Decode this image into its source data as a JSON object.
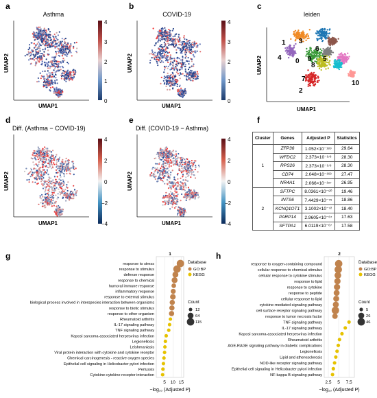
{
  "panels": {
    "a": {
      "letter": "a",
      "title": "Asthma",
      "xlabel": "UMAP1",
      "ylabel": "UMAP2",
      "colorbar": [
        "4",
        "3",
        "2",
        "1",
        "0"
      ]
    },
    "b": {
      "letter": "b",
      "title": "COVID-19",
      "xlabel": "UMAP1",
      "ylabel": "UMAP2",
      "colorbar": [
        "4",
        "3",
        "2",
        "1",
        "0"
      ]
    },
    "c": {
      "letter": "c",
      "title": "leiden",
      "xlabel": "UMAP1",
      "ylabel": "UMAP2",
      "clusters": [
        "1",
        "3",
        "6",
        "4",
        "0",
        "9",
        "5",
        "8",
        "7",
        "2",
        "10"
      ]
    },
    "d": {
      "letter": "d",
      "title": "Diff. (Asthma − COVID-19)",
      "xlabel": "UMAP1",
      "ylabel": "UMAP2",
      "colorbar": [
        "4",
        "2",
        "0",
        "−2",
        "−4"
      ]
    },
    "e": {
      "letter": "e",
      "title": "Diff. (COVID-19 − Asthma)",
      "xlabel": "UMAP1",
      "ylabel": "UMAP2",
      "colorbar": [
        "4",
        "2",
        "0",
        "−2",
        "−4"
      ]
    },
    "f": {
      "letter": "f"
    },
    "g": {
      "letter": "g"
    },
    "h": {
      "letter": "h"
    }
  },
  "table": {
    "headers": [
      "Cluster",
      "Genes",
      "Adjusted P",
      "Statistics"
    ],
    "groups": [
      {
        "cluster": "1",
        "rows": [
          {
            "gene": "ZFP36",
            "p": "1.052×10⁻¹⁸⁹",
            "stat": "29.64"
          },
          {
            "gene": "WFDC2",
            "p": "2.373×10⁻¹⁷³",
            "stat": "28.30"
          },
          {
            "gene": "RPS26",
            "p": "2.373×10⁻¹⁷³",
            "stat": "28.30"
          },
          {
            "gene": "CD74",
            "p": "2.048×10⁻¹⁶³",
            "stat": "27.47"
          },
          {
            "gene": "NR4A1",
            "p": "2.066×10⁻¹⁵⁷",
            "stat": "26.95"
          }
        ]
      },
      {
        "cluster": "2",
        "rows": [
          {
            "gene": "SFTPC",
            "p": "8.0361×10⁻⁸⁰",
            "stat": "19.46"
          },
          {
            "gene": "INTS6",
            "p": "7.4429×10⁻⁷⁵",
            "stat": "18.86"
          },
          {
            "gene": "KCNQ1OT1",
            "p": "3.1002×10⁻⁷²",
            "stat": "18.40"
          },
          {
            "gene": "PARP14",
            "p": "2.9605×10⁻⁶⁷",
            "stat": "17.63"
          },
          {
            "gene": "SFTPA1",
            "p": "6.0119×10⁻⁶⁷",
            "stat": "17.58"
          }
        ]
      }
    ]
  },
  "chart_data": [
    {
      "type": "scatter",
      "title": "1",
      "xlabel": "−log₁₀ (Adjusted P)",
      "xticks": [
        5,
        10,
        15
      ],
      "xlim": [
        0,
        16.5
      ],
      "terms": [
        {
          "name": "response to stress",
          "x": 14.5,
          "count": 115,
          "db": "GO:BP"
        },
        {
          "name": "response to stimulus",
          "x": 12.5,
          "count": 115,
          "db": "GO:BP"
        },
        {
          "name": "defense response",
          "x": 11.5,
          "count": 64,
          "db": "GO:BP"
        },
        {
          "name": "response to chemical",
          "x": 11.0,
          "count": 64,
          "db": "GO:BP"
        },
        {
          "name": "humoral immune response",
          "x": 10.5,
          "count": 30,
          "db": "GO:BP"
        },
        {
          "name": "inflammatory response",
          "x": 10.2,
          "count": 40,
          "db": "GO:BP"
        },
        {
          "name": "response to external stimulus",
          "x": 10.0,
          "count": 55,
          "db": "GO:BP"
        },
        {
          "name": "biological process involved in interspecies interaction between organisms",
          "x": 9.6,
          "count": 45,
          "db": "GO:BP"
        },
        {
          "name": "response to biotic stimulus",
          "x": 9.4,
          "count": 45,
          "db": "GO:BP"
        },
        {
          "name": "response to other organism",
          "x": 9.2,
          "count": 45,
          "db": "GO:BP"
        },
        {
          "name": "Rheumatoid arthritis",
          "x": 8.5,
          "count": 12,
          "db": "KEGG"
        },
        {
          "name": "IL-17 signaling pathway",
          "x": 8.0,
          "count": 12,
          "db": "KEGG"
        },
        {
          "name": "TNF signaling pathway",
          "x": 7.5,
          "count": 12,
          "db": "KEGG"
        },
        {
          "name": "Kaposi sarcoma-associated herpesvirus infection",
          "x": 6.0,
          "count": 12,
          "db": "KEGG"
        },
        {
          "name": "Legionellosis",
          "x": 5.5,
          "count": 12,
          "db": "KEGG"
        },
        {
          "name": "Leishmaniasis",
          "x": 5.2,
          "count": 12,
          "db": "KEGG"
        },
        {
          "name": "Viral protein interaction with cytokine and cytokine receptor",
          "x": 5.0,
          "count": 12,
          "db": "KEGG"
        },
        {
          "name": "Chemical carcinogenesis - reactive oxygen species",
          "x": 4.6,
          "count": 12,
          "db": "KEGG"
        },
        {
          "name": "Epithelial cell signaling in Helicobacter pylori infection",
          "x": 4.3,
          "count": 12,
          "db": "KEGG"
        },
        {
          "name": "Pertussis",
          "x": 4.0,
          "count": 12,
          "db": "KEGG"
        },
        {
          "name": "Cytokine-cytokine receptor interaction",
          "x": 3.8,
          "count": 12,
          "db": "KEGG"
        }
      ],
      "legend": {
        "database_title": "Database",
        "databases": [
          "GO:BP",
          "KEGG"
        ],
        "count_title": "Count",
        "counts": [
          12,
          64,
          115
        ]
      }
    },
    {
      "type": "scatter",
      "title": "2",
      "xlabel": "−log₁₀ (Adjusted P)",
      "xticks": [
        2.5,
        5.0,
        7.5
      ],
      "xlim": [
        1.5,
        8.8
      ],
      "terms": [
        {
          "name": "response to oxygen-containing compound",
          "x": 5.0,
          "count": 46,
          "db": "GO:BP"
        },
        {
          "name": "cellular response to chemical stimulus",
          "x": 4.9,
          "count": 46,
          "db": "GO:BP"
        },
        {
          "name": "cellular response to cytokine stimulus",
          "x": 4.8,
          "count": 35,
          "db": "GO:BP"
        },
        {
          "name": "response to lipid",
          "x": 4.7,
          "count": 30,
          "db": "GO:BP"
        },
        {
          "name": "response to cytokine",
          "x": 4.6,
          "count": 30,
          "db": "GO:BP"
        },
        {
          "name": "response to peptide",
          "x": 4.5,
          "count": 26,
          "db": "GO:BP"
        },
        {
          "name": "cellular response to lipid",
          "x": 4.4,
          "count": 26,
          "db": "GO:BP"
        },
        {
          "name": "cytokine-mediated signaling pathway",
          "x": 4.3,
          "count": 26,
          "db": "GO:BP"
        },
        {
          "name": "cell surface receptor signaling pathway",
          "x": 4.2,
          "count": 46,
          "db": "GO:BP"
        },
        {
          "name": "response to tumor necrosis factor",
          "x": 4.1,
          "count": 20,
          "db": "GO:BP"
        },
        {
          "name": "TNF signaling pathway",
          "x": 7.5,
          "count": 5,
          "db": "KEGG"
        },
        {
          "name": "IL-17 signaling pathway",
          "x": 6.6,
          "count": 5,
          "db": "KEGG"
        },
        {
          "name": "Kaposi sarcoma-associated herpesvirus infection",
          "x": 5.8,
          "count": 5,
          "db": "KEGG"
        },
        {
          "name": "Rheumatoid arthritis",
          "x": 5.2,
          "count": 5,
          "db": "KEGG"
        },
        {
          "name": "AGE-RAGE signaling pathway in diabetic complications",
          "x": 4.9,
          "count": 5,
          "db": "KEGG"
        },
        {
          "name": "Legionellosis",
          "x": 4.6,
          "count": 5,
          "db": "KEGG"
        },
        {
          "name": "Lipid and atherosclerosis",
          "x": 4.3,
          "count": 5,
          "db": "KEGG"
        },
        {
          "name": "NOD-like receptor signaling pathway",
          "x": 4.0,
          "count": 5,
          "db": "KEGG"
        },
        {
          "name": "Epithelial cell signaling in Helicobacter pylori infection",
          "x": 3.7,
          "count": 5,
          "db": "KEGG"
        },
        {
          "name": "NF-kappa B signaling pathway",
          "x": 3.5,
          "count": 5,
          "db": "KEGG"
        }
      ],
      "legend": {
        "database_title": "Database",
        "databases": [
          "GO:BP",
          "KEGG"
        ],
        "count_title": "Count",
        "counts": [
          5,
          26,
          46
        ]
      }
    }
  ],
  "colors": {
    "go_bp": "#c0834d",
    "kegg": "#e6c200",
    "axis": "#333333"
  }
}
